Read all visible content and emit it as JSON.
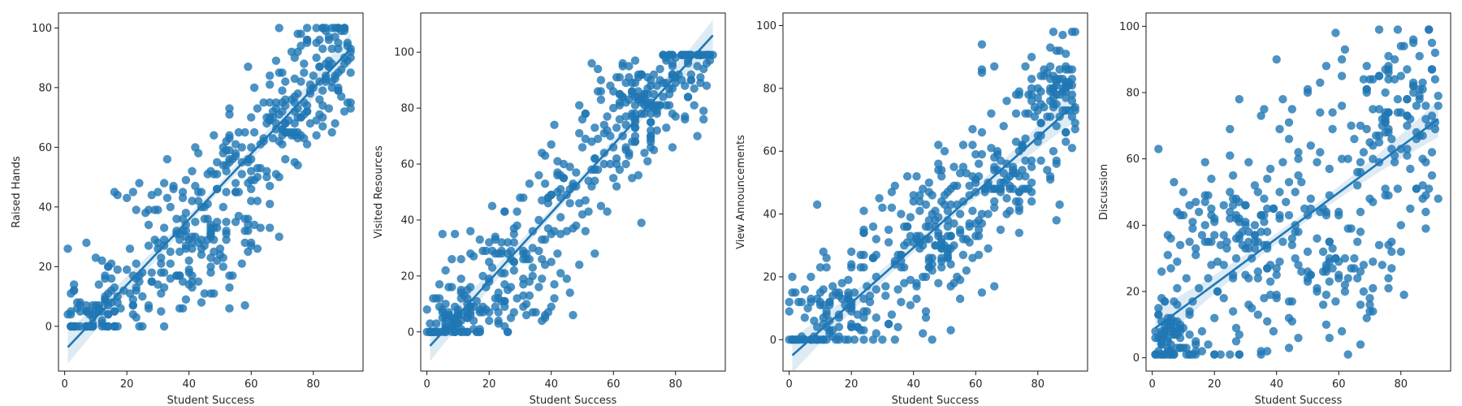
{
  "figure": {
    "point_color": "#1f77b4",
    "line_color": "#1f77b4",
    "band_color": "#1f77b4"
  },
  "chart_data": [
    {
      "type": "scatter",
      "xlabel": "Student Success",
      "ylabel": "Raised Hands",
      "xlim": [
        -2,
        96
      ],
      "ylim": [
        -15,
        105
      ],
      "xticks": [
        0,
        20,
        40,
        60,
        80
      ],
      "yticks": [
        0,
        20,
        40,
        60,
        80,
        100
      ],
      "regression": {
        "x": [
          1,
          92
        ],
        "y": [
          -7,
          93
        ]
      },
      "points": {
        "seed": 11,
        "count": 480,
        "x_range": [
          1,
          92
        ],
        "y_range": [
          0,
          100
        ],
        "slope": 1.1,
        "intercept": -8,
        "spread": 13,
        "clusters": [
          [
            72,
            70,
            6,
            4
          ],
          [
            85,
            88,
            6,
            6
          ],
          [
            52,
            30,
            7,
            6
          ],
          [
            40,
            15,
            8,
            5
          ],
          [
            10,
            5,
            5,
            4
          ]
        ]
      }
    },
    {
      "type": "scatter",
      "xlabel": "Student Success",
      "ylabel": "Visited Resources",
      "xlim": [
        -2,
        96
      ],
      "ylim": [
        -14,
        114
      ],
      "xticks": [
        0,
        20,
        40,
        60,
        80
      ],
      "yticks": [
        0,
        20,
        40,
        60,
        80,
        100
      ],
      "regression": {
        "x": [
          1,
          92
        ],
        "y": [
          -5,
          106
        ]
      },
      "points": {
        "seed": 23,
        "count": 480,
        "x_range": [
          0,
          92
        ],
        "y_range": [
          0,
          99
        ],
        "slope": 1.2,
        "intercept": -6,
        "spread": 13,
        "clusters": [
          [
            75,
            88,
            9,
            6
          ],
          [
            8,
            5,
            4,
            4
          ],
          [
            30,
            10,
            8,
            7
          ],
          [
            65,
            80,
            7,
            6
          ]
        ]
      }
    },
    {
      "type": "scatter",
      "xlabel": "Student Success",
      "ylabel": "View Announcements",
      "xlim": [
        -2,
        96
      ],
      "ylim": [
        -10,
        104
      ],
      "xticks": [
        0,
        20,
        40,
        60,
        80
      ],
      "yticks": [
        0,
        20,
        40,
        60,
        80,
        100
      ],
      "regression": {
        "x": [
          1,
          92
        ],
        "y": [
          -5,
          75
        ]
      },
      "points": {
        "seed": 37,
        "count": 480,
        "x_range": [
          0,
          92
        ],
        "y_range": [
          0,
          98
        ],
        "slope": 0.9,
        "intercept": -5,
        "spread": 14,
        "clusters": [
          [
            70,
            50,
            6,
            5
          ],
          [
            85,
            80,
            5,
            6
          ],
          [
            50,
            30,
            6,
            6
          ],
          [
            15,
            8,
            6,
            5
          ]
        ]
      }
    },
    {
      "type": "scatter",
      "xlabel": "Student Success",
      "ylabel": "Discussion",
      "xlim": [
        -2,
        96
      ],
      "ylim": [
        -4,
        104
      ],
      "xticks": [
        0,
        20,
        40,
        60,
        80
      ],
      "yticks": [
        0,
        20,
        40,
        60,
        80,
        100
      ],
      "regression": {
        "x": [
          1,
          92
        ],
        "y": [
          9,
          72
        ]
      },
      "points": {
        "seed": 51,
        "count": 480,
        "x_range": [
          1,
          92
        ],
        "y_range": [
          1,
          99
        ],
        "slope": 0.7,
        "intercept": 9,
        "spread": 20,
        "clusters": [
          [
            80,
            80,
            8,
            10
          ],
          [
            60,
            20,
            10,
            8
          ],
          [
            25,
            40,
            8,
            8
          ],
          [
            5,
            5,
            3,
            4
          ]
        ]
      }
    }
  ]
}
